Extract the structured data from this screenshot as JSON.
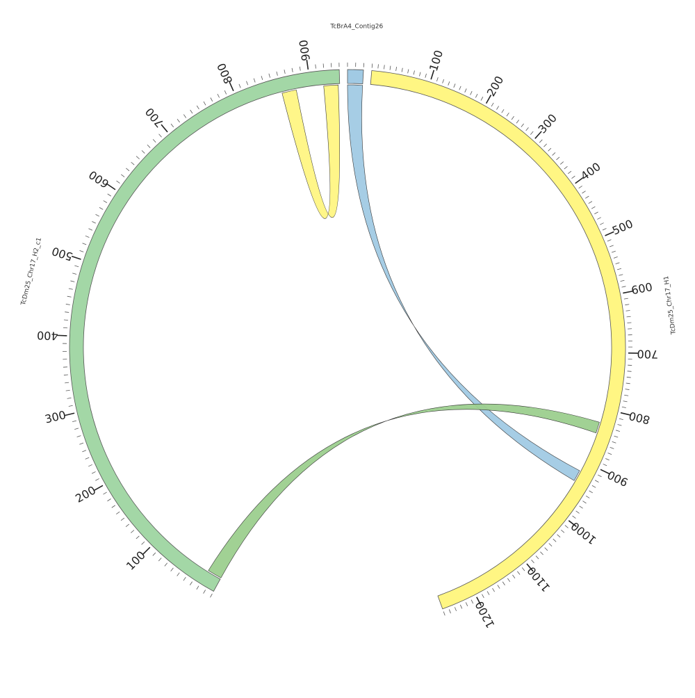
{
  "diagram": {
    "type": "circos-synteny",
    "segments": [
      {
        "id": "chr17_h1",
        "label": "TcDm25_Chr17_H1",
        "length": 1260,
        "color": "#fff683",
        "tick_labels": [
          "100",
          "200",
          "300",
          "400",
          "500",
          "600",
          "700",
          "800",
          "900",
          "1000",
          "1100",
          "1200"
        ]
      },
      {
        "id": "chr17_h2",
        "label": "TcDm25_Chr17_H2_c1",
        "length": 940,
        "color": "#a3d7a6",
        "tick_labels": [
          "100",
          "200",
          "300",
          "400",
          "500",
          "600",
          "700",
          "800",
          "900"
        ]
      },
      {
        "id": "contig26",
        "label": "TcBrA4_Contig26",
        "length": 20,
        "color": "#a1cae4",
        "tick_labels": []
      }
    ],
    "links": [
      {
        "source": "contig26",
        "source_range": [
          0,
          20
        ],
        "target": "chr17_h1",
        "target_range": [
          918,
          938
        ],
        "color": "#a1cae4"
      },
      {
        "source": "chr17_h2",
        "source_range": [
          0,
          20
        ],
        "target": "chr17_h1",
        "target_range": [
          825,
          845
        ],
        "color": "#9ccf8e"
      },
      {
        "source": "chr17_h2",
        "source_range": [
          860,
          880
        ],
        "target": "chr17_h2",
        "target_range": [
          918,
          938
        ],
        "color": "#fff683"
      }
    ]
  }
}
